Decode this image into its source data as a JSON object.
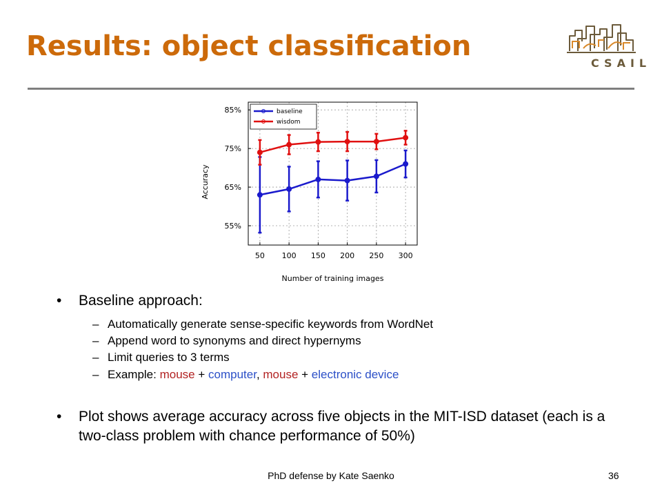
{
  "slide": {
    "title": "Results: object classification",
    "logo_text": "CSAIL",
    "footer": "PhD defense by Kate Saenko",
    "page_number": "36"
  },
  "bullets": [
    {
      "text": "Baseline approach:",
      "sub": [
        {
          "parts": [
            {
              "t": "Automatically generate sense-specific keywords from WordNet",
              "c": "black"
            }
          ]
        },
        {
          "parts": [
            {
              "t": "Append word to synonyms and direct hypernyms",
              "c": "black"
            }
          ]
        },
        {
          "parts": [
            {
              "t": "Limit queries to 3 terms",
              "c": "black"
            }
          ]
        },
        {
          "parts": [
            {
              "t": "Example: ",
              "c": "black"
            },
            {
              "t": "mouse",
              "c": "red"
            },
            {
              "t": " + ",
              "c": "black"
            },
            {
              "t": "computer",
              "c": "blue"
            },
            {
              "t": ", ",
              "c": "black"
            },
            {
              "t": "mouse",
              "c": "red"
            },
            {
              "t": " + ",
              "c": "black"
            },
            {
              "t": "electronic device",
              "c": "blue"
            }
          ]
        }
      ]
    },
    {
      "text": "Plot shows average accuracy across five objects in the MIT-ISD dataset (each is a two-class problem with chance performance of 50%)",
      "sub": []
    }
  ],
  "chart_data": {
    "type": "line",
    "xlabel": "Number of training images",
    "ylabel": "Accuracy",
    "x": [
      50,
      100,
      150,
      200,
      250,
      300
    ],
    "xticks": [
      "50",
      "100",
      "150",
      "200",
      "250",
      "300"
    ],
    "yticks": [
      55,
      65,
      75,
      85
    ],
    "ytick_labels": [
      "55%",
      "65%",
      "75%",
      "85%"
    ],
    "xlim": [
      30,
      320
    ],
    "ylim": [
      50,
      87
    ],
    "grid": true,
    "legend_position": "top-left",
    "series": [
      {
        "name": "baseline",
        "color": "#1a1acc",
        "values": [
          63,
          64.5,
          67,
          66.7,
          67.8,
          71
        ],
        "err": [
          9.8,
          5.8,
          4.7,
          5.2,
          4.2,
          3.5
        ]
      },
      {
        "name": "wisdom",
        "color": "#e01010",
        "values": [
          74,
          76,
          76.7,
          76.8,
          76.8,
          77.8
        ],
        "err": [
          3.2,
          2.5,
          2.4,
          2.5,
          2.0,
          1.8
        ]
      }
    ]
  }
}
